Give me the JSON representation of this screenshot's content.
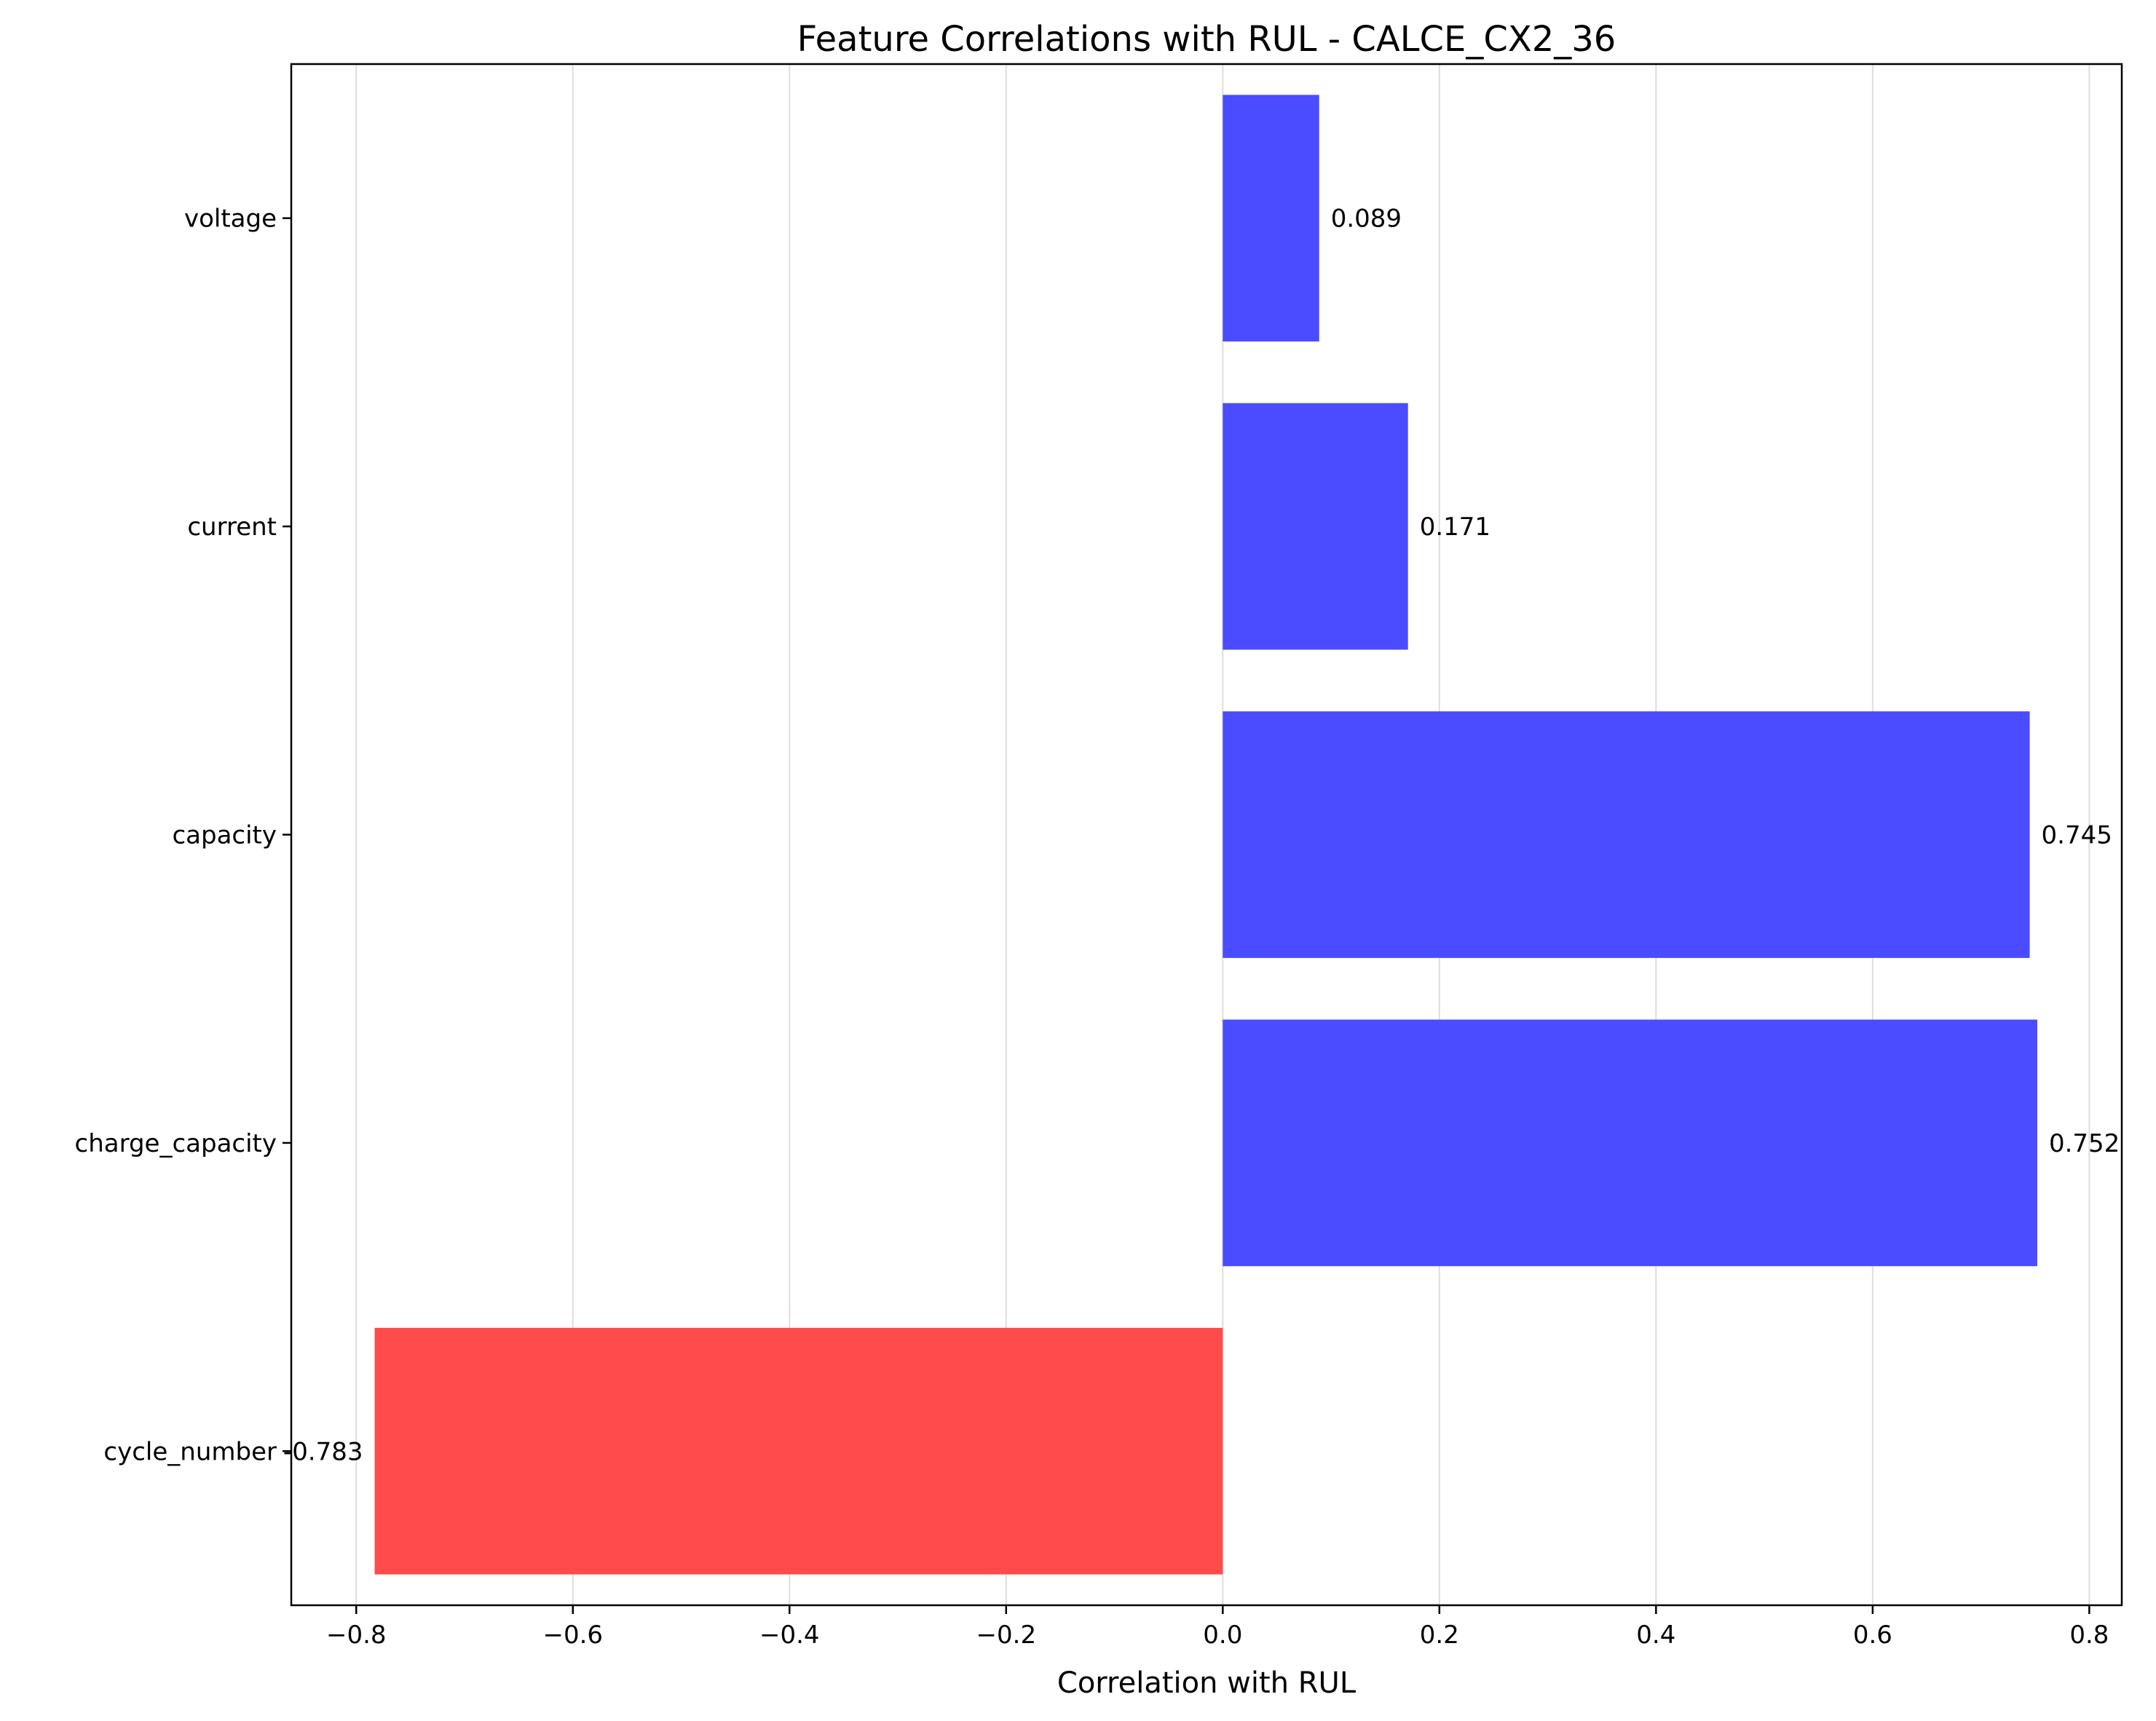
{
  "chart_data": {
    "type": "bar",
    "orientation": "horizontal",
    "title": "Feature Correlations with RUL - CALCE_CX2_36",
    "xlabel": "Correlation with RUL",
    "ylabel": "",
    "categories": [
      "voltage",
      "current",
      "capacity",
      "charge_capacity",
      "cycle_number"
    ],
    "values": [
      0.089,
      0.171,
      0.745,
      0.752,
      -0.783
    ],
    "value_labels": [
      "0.089",
      "0.171",
      "0.745",
      "0.752",
      "-0.783"
    ],
    "xlim": [
      -0.86,
      0.83
    ],
    "xticks": [
      -0.8,
      -0.6,
      -0.4,
      -0.2,
      0.0,
      0.2,
      0.4,
      0.6,
      0.8
    ],
    "xtick_labels": [
      "−0.8",
      "−0.6",
      "−0.4",
      "−0.2",
      "0.0",
      "0.2",
      "0.4",
      "0.6",
      "0.8"
    ],
    "grid": "x",
    "legend": "none",
    "colors": {
      "positive": "#4b4bff",
      "negative": "#ff4b4b",
      "grid": "#dddddd",
      "axis": "#000000"
    }
  }
}
